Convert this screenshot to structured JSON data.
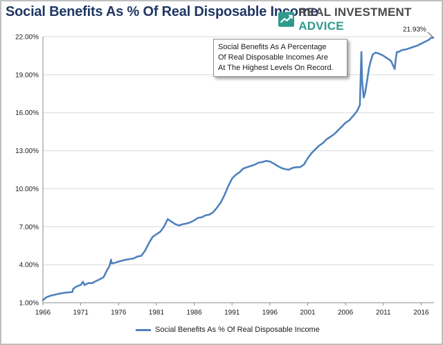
{
  "header": {
    "title": "Social Benefits As % Of Real Disposable Income",
    "brand_name": "REAL INVESTMENT",
    "brand_accent": "ADVICE"
  },
  "colors": {
    "title": "#1f3864",
    "series": "#4f81bd",
    "brand_accent": "#2e9a8c",
    "grid": "#d9d9d9"
  },
  "annotation": {
    "lines": [
      "Social Benefits As  A Percentage",
      "Of Real Disposable Incomes Are",
      "At The Highest Levels On Record."
    ]
  },
  "chart_data": {
    "type": "line",
    "title": "Social Benefits As % Of Real Disposable Income",
    "xlabel": "",
    "ylabel": "",
    "xlim": [
      1966,
      2017.7
    ],
    "ylim": [
      1.0,
      22.0
    ],
    "x_ticks": [
      "1966",
      "1971",
      "1976",
      "1981",
      "1986",
      "1991",
      "1996",
      "2001",
      "2006",
      "2011",
      "2016"
    ],
    "y_ticks": [
      "1.00%",
      "4.00%",
      "7.00%",
      "10.00%",
      "13.00%",
      "16.00%",
      "19.00%",
      "22.00%"
    ],
    "grid": "horizontal",
    "legend_position": "bottom",
    "last_value_label": "21.93%",
    "series": [
      {
        "name": "Social Benefits As % Of Real Disposable Income",
        "x": [
          1966.0,
          1966.5,
          1967.0,
          1968.0,
          1969.0,
          1969.9,
          1970.0,
          1970.5,
          1971.0,
          1971.3,
          1971.5,
          1972.0,
          1972.5,
          1973.0,
          1973.5,
          1974.0,
          1974.5,
          1974.8,
          1975.0,
          1975.1,
          1975.5,
          1976.0,
          1977.0,
          1978.0,
          1978.5,
          1979.0,
          1979.5,
          1980.0,
          1980.5,
          1981.0,
          1981.5,
          1982.0,
          1982.5,
          1983.0,
          1983.5,
          1984.0,
          1984.5,
          1985.0,
          1985.5,
          1986.0,
          1986.5,
          1987.0,
          1987.5,
          1988.0,
          1988.5,
          1989.0,
          1989.5,
          1990.0,
          1990.5,
          1991.0,
          1991.5,
          1992.0,
          1992.5,
          1993.0,
          1993.5,
          1994.0,
          1994.5,
          1995.0,
          1995.5,
          1996.0,
          1996.5,
          1997.0,
          1997.5,
          1998.0,
          1998.5,
          1999.0,
          1999.5,
          2000.0,
          2000.5,
          2001.0,
          2001.5,
          2002.0,
          2002.5,
          2003.0,
          2003.5,
          2004.0,
          2004.5,
          2005.0,
          2005.5,
          2006.0,
          2006.5,
          2007.0,
          2007.5,
          2007.9,
          2008.1,
          2008.2,
          2008.4,
          2008.6,
          2008.9,
          2009.1,
          2009.3,
          2009.6,
          2010.0,
          2010.5,
          2011.0,
          2011.5,
          2012.0,
          2012.5,
          2012.7,
          2012.8,
          2013.0,
          2013.5,
          2014.0,
          2014.5,
          2015.0,
          2015.5,
          2016.0,
          2016.5,
          2017.0,
          2017.3,
          2017.6
        ],
        "values": [
          1.2,
          1.45,
          1.55,
          1.7,
          1.8,
          1.85,
          2.1,
          2.3,
          2.4,
          2.65,
          2.4,
          2.55,
          2.55,
          2.7,
          2.85,
          3.0,
          3.6,
          3.9,
          4.4,
          4.1,
          4.15,
          4.25,
          4.4,
          4.5,
          4.65,
          4.7,
          5.1,
          5.7,
          6.2,
          6.4,
          6.6,
          7.0,
          7.6,
          7.4,
          7.2,
          7.1,
          7.2,
          7.25,
          7.35,
          7.5,
          7.7,
          7.75,
          7.9,
          7.95,
          8.15,
          8.5,
          8.9,
          9.5,
          10.2,
          10.8,
          11.1,
          11.3,
          11.6,
          11.7,
          11.8,
          11.9,
          12.05,
          12.1,
          12.2,
          12.15,
          12.0,
          11.8,
          11.65,
          11.55,
          11.5,
          11.65,
          11.7,
          11.7,
          11.9,
          12.4,
          12.8,
          13.1,
          13.4,
          13.6,
          13.9,
          14.1,
          14.3,
          14.6,
          14.9,
          15.2,
          15.4,
          15.75,
          16.1,
          16.6,
          20.8,
          18.5,
          17.2,
          17.6,
          18.7,
          19.5,
          20.0,
          20.6,
          20.75,
          20.65,
          20.5,
          20.3,
          20.1,
          19.45,
          20.5,
          20.8,
          20.8,
          20.95,
          21.0,
          21.1,
          21.2,
          21.3,
          21.45,
          21.6,
          21.75,
          21.9,
          21.93
        ]
      }
    ]
  }
}
